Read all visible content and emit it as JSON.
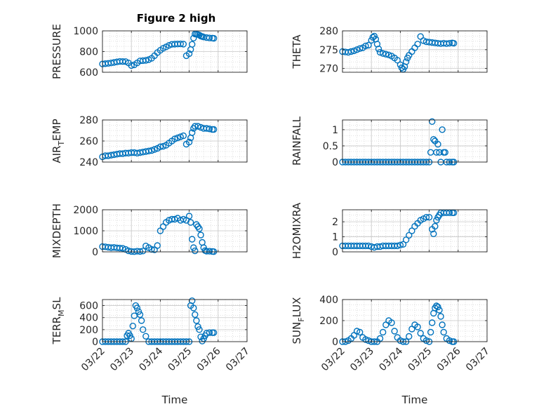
{
  "chart_data": {
    "figure_title": "Figure 2 high",
    "marker_color": "#0072BD",
    "x_axis": {
      "label": "Time",
      "ticks": [
        "03/22",
        "03/23",
        "03/24",
        "03/25",
        "03/26",
        "03/27"
      ],
      "range_days": [
        0,
        5
      ]
    },
    "panels": [
      {
        "id": "pressure",
        "type": "scatter",
        "ylabel": "PRESSURE",
        "ylabel_sub": "",
        "ylim": [
          600,
          1000
        ],
        "yticks": [
          600,
          800,
          1000
        ],
        "grid": true,
        "x": [
          0,
          0.1,
          0.2,
          0.3,
          0.4,
          0.5,
          0.6,
          0.7,
          0.8,
          0.9,
          1.0,
          1.1,
          1.2,
          1.3,
          1.4,
          1.5,
          1.6,
          1.7,
          1.8,
          1.9,
          2.0,
          2.1,
          2.2,
          2.3,
          2.4,
          2.5,
          2.6,
          2.7,
          2.8,
          2.9,
          3.0,
          3.05,
          3.1,
          3.15,
          3.2,
          3.25,
          3.3,
          3.35,
          3.4,
          3.45,
          3.5,
          3.6,
          3.7,
          3.8,
          3.85
        ],
        "y": [
          680,
          683,
          686,
          690,
          695,
          700,
          705,
          704,
          703,
          690,
          665,
          672,
          690,
          710,
          712,
          715,
          722,
          735,
          760,
          790,
          812,
          832,
          845,
          860,
          870,
          872,
          873,
          874,
          872,
          760,
          780,
          820,
          870,
          930,
          970,
          968,
          965,
          960,
          950,
          945,
          940,
          935,
          932,
          930,
          928
        ]
      },
      {
        "id": "theta",
        "type": "scatter",
        "ylabel": "THETA",
        "ylabel_sub": "",
        "ylim": [
          269,
          280
        ],
        "yticks": [
          270,
          275,
          280
        ],
        "grid": true,
        "x": [
          0,
          0.1,
          0.2,
          0.3,
          0.4,
          0.5,
          0.6,
          0.7,
          0.8,
          0.9,
          1.0,
          1.05,
          1.1,
          1.15,
          1.2,
          1.25,
          1.3,
          1.4,
          1.5,
          1.6,
          1.7,
          1.8,
          1.9,
          2.0,
          2.05,
          2.1,
          2.15,
          2.2,
          2.25,
          2.3,
          2.4,
          2.5,
          2.6,
          2.7,
          2.8,
          2.9,
          3.0,
          3.1,
          3.2,
          3.3,
          3.4,
          3.5,
          3.6,
          3.7,
          3.8,
          3.85
        ],
        "y": [
          274.5,
          274.4,
          274.3,
          274.5,
          274.7,
          275.0,
          275.3,
          275.5,
          276.0,
          276.2,
          277.5,
          278.3,
          278.6,
          277.8,
          276.5,
          275.2,
          274.3,
          274.0,
          273.8,
          273.6,
          273.3,
          272.8,
          272.2,
          271.0,
          270.2,
          269.8,
          270.5,
          271.8,
          272.8,
          273.5,
          274.5,
          275.5,
          276.5,
          278.5,
          277.4,
          277.1,
          277.0,
          276.9,
          276.8,
          276.7,
          276.6,
          276.7,
          276.6,
          276.7,
          276.8,
          276.7
        ]
      },
      {
        "id": "air_temp",
        "type": "scatter",
        "ylabel": "AIR",
        "ylabel_sub": "T",
        "ylabel_after": "EMP",
        "ylim": [
          240,
          280
        ],
        "yticks": [
          240,
          260,
          280
        ],
        "grid": true,
        "x": [
          0,
          0.1,
          0.2,
          0.3,
          0.4,
          0.5,
          0.6,
          0.7,
          0.8,
          0.9,
          1.0,
          1.1,
          1.2,
          1.3,
          1.4,
          1.5,
          1.6,
          1.7,
          1.8,
          1.9,
          2.0,
          2.1,
          2.2,
          2.3,
          2.4,
          2.5,
          2.6,
          2.7,
          2.8,
          2.9,
          3.0,
          3.05,
          3.1,
          3.15,
          3.2,
          3.3,
          3.4,
          3.5,
          3.6,
          3.7,
          3.8,
          3.85
        ],
        "y": [
          245,
          246,
          246,
          246.5,
          247,
          247.5,
          248,
          248,
          248.5,
          248.5,
          249,
          249,
          248.5,
          249,
          249.5,
          250,
          250.5,
          251,
          252,
          253,
          254.5,
          255,
          256,
          258,
          260,
          262,
          263,
          264,
          265,
          257,
          259,
          263,
          268,
          272,
          274,
          274,
          273,
          272,
          272,
          271.5,
          271,
          271
        ],
        "y_note": "values read approximately"
      },
      {
        "id": "rainfall",
        "type": "scatter",
        "ylabel": "RAINFALL",
        "ylabel_sub": "",
        "ylim": [
          0,
          1.3
        ],
        "yticks": [
          0,
          0.5,
          1
        ],
        "grid": true,
        "x": [
          0,
          0.1,
          0.2,
          0.3,
          0.4,
          0.5,
          0.6,
          0.7,
          0.8,
          0.9,
          1.0,
          1.1,
          1.2,
          1.3,
          1.4,
          1.5,
          1.6,
          1.7,
          1.8,
          1.9,
          2.0,
          2.1,
          2.2,
          2.3,
          2.4,
          2.5,
          2.6,
          2.7,
          2.8,
          2.9,
          3.0,
          3.05,
          3.1,
          3.15,
          3.2,
          3.25,
          3.3,
          3.35,
          3.4,
          3.45,
          3.5,
          3.55,
          3.6,
          3.7,
          3.8,
          3.85
        ],
        "y": [
          0,
          0,
          0,
          0,
          0,
          0,
          0,
          0,
          0,
          0,
          0,
          0,
          0,
          0,
          0,
          0,
          0,
          0,
          0,
          0,
          0,
          0,
          0,
          0,
          0,
          0,
          0,
          0,
          0,
          0,
          0,
          0.3,
          1.25,
          0.7,
          0.65,
          0.3,
          0.55,
          0.3,
          0,
          1.0,
          0.3,
          0.3,
          0,
          0,
          0,
          0
        ]
      },
      {
        "id": "mixdepth",
        "type": "scatter",
        "ylabel": "MIXDEPTH",
        "ylabel_sub": "",
        "ylim": [
          0,
          2000
        ],
        "yticks": [
          0,
          1000,
          2000
        ],
        "grid": true,
        "x": [
          0,
          0.1,
          0.2,
          0.3,
          0.4,
          0.5,
          0.6,
          0.7,
          0.8,
          0.9,
          1.0,
          1.1,
          1.2,
          1.3,
          1.4,
          1.5,
          1.6,
          1.7,
          1.8,
          1.9,
          2.0,
          2.1,
          2.2,
          2.3,
          2.4,
          2.5,
          2.6,
          2.7,
          2.8,
          2.9,
          3.0,
          3.05,
          3.1,
          3.15,
          3.2,
          3.25,
          3.3,
          3.35,
          3.4,
          3.45,
          3.5,
          3.55,
          3.6,
          3.7,
          3.8,
          3.85
        ],
        "y": [
          250,
          240,
          220,
          200,
          210,
          190,
          180,
          170,
          120,
          50,
          20,
          10,
          30,
          20,
          40,
          280,
          200,
          120,
          100,
          300,
          1000,
          1200,
          1400,
          1500,
          1550,
          1550,
          1600,
          1500,
          1550,
          1500,
          1700,
          1400,
          600,
          200,
          50,
          1300,
          1200,
          1100,
          800,
          450,
          200,
          60,
          30,
          30,
          20,
          10
        ]
      },
      {
        "id": "h2omixra",
        "type": "scatter",
        "ylabel": "H2OMIXRA",
        "ylabel_sub": "",
        "ylim": [
          0,
          2.8
        ],
        "yticks": [
          0,
          1,
          2
        ],
        "grid": true,
        "x": [
          0,
          0.1,
          0.2,
          0.3,
          0.4,
          0.5,
          0.6,
          0.7,
          0.8,
          0.9,
          1.0,
          1.1,
          1.2,
          1.3,
          1.4,
          1.5,
          1.6,
          1.7,
          1.8,
          1.9,
          2.0,
          2.1,
          2.2,
          2.3,
          2.4,
          2.5,
          2.6,
          2.7,
          2.8,
          2.9,
          3.0,
          3.1,
          3.15,
          3.2,
          3.25,
          3.3,
          3.35,
          3.4,
          3.5,
          3.6,
          3.7,
          3.8,
          3.85
        ],
        "y": [
          0.4,
          0.4,
          0.4,
          0.4,
          0.4,
          0.4,
          0.4,
          0.4,
          0.4,
          0.4,
          0.35,
          0.3,
          0.35,
          0.35,
          0.4,
          0.4,
          0.4,
          0.4,
          0.4,
          0.4,
          0.45,
          0.5,
          0.8,
          1.1,
          1.4,
          1.7,
          1.9,
          2.1,
          2.2,
          2.3,
          2.3,
          1.5,
          1.2,
          1.7,
          2.1,
          2.3,
          2.45,
          2.6,
          2.6,
          2.6,
          2.6,
          2.6,
          2.6
        ]
      },
      {
        "id": "terr_msl",
        "type": "scatter",
        "ylabel": "TERR",
        "ylabel_sub": "M",
        "ylabel_after": "SL",
        "ylim": [
          0,
          700
        ],
        "yticks": [
          0,
          200,
          400,
          600
        ],
        "grid": true,
        "x": [
          0,
          0.1,
          0.2,
          0.3,
          0.4,
          0.5,
          0.6,
          0.7,
          0.8,
          0.85,
          0.9,
          0.95,
          1.0,
          1.05,
          1.1,
          1.15,
          1.2,
          1.25,
          1.3,
          1.35,
          1.4,
          1.5,
          1.6,
          1.7,
          1.8,
          1.9,
          2.0,
          2.1,
          2.2,
          2.3,
          2.4,
          2.5,
          2.6,
          2.7,
          2.8,
          2.9,
          3.0,
          3.05,
          3.1,
          3.15,
          3.2,
          3.25,
          3.3,
          3.35,
          3.4,
          3.45,
          3.5,
          3.55,
          3.6,
          3.7,
          3.8,
          3.85
        ],
        "y": [
          0,
          0,
          0,
          0,
          0,
          0,
          0,
          0,
          0,
          100,
          140,
          100,
          50,
          260,
          430,
          600,
          560,
          500,
          450,
          350,
          200,
          90,
          0,
          0,
          0,
          0,
          0,
          0,
          0,
          0,
          0,
          0,
          0,
          0,
          0,
          0,
          0,
          600,
          680,
          560,
          450,
          350,
          250,
          200,
          80,
          10,
          50,
          100,
          140,
          150,
          150,
          150
        ]
      },
      {
        "id": "sun_flux",
        "type": "scatter",
        "ylabel": "SUN",
        "ylabel_sub": "F",
        "ylabel_after": "LUX",
        "ylim": [
          0,
          400
        ],
        "yticks": [
          0,
          200,
          400
        ],
        "grid": true,
        "x": [
          0,
          0.1,
          0.2,
          0.3,
          0.4,
          0.5,
          0.6,
          0.7,
          0.8,
          0.9,
          1.0,
          1.1,
          1.2,
          1.3,
          1.4,
          1.5,
          1.6,
          1.7,
          1.8,
          1.9,
          2.0,
          2.1,
          2.2,
          2.3,
          2.4,
          2.5,
          2.6,
          2.7,
          2.8,
          2.9,
          3.0,
          3.05,
          3.1,
          3.15,
          3.2,
          3.25,
          3.3,
          3.35,
          3.4,
          3.45,
          3.5,
          3.6,
          3.7,
          3.8,
          3.85
        ],
        "y": [
          0,
          0,
          10,
          30,
          60,
          100,
          90,
          40,
          20,
          10,
          0,
          0,
          0,
          30,
          90,
          160,
          200,
          180,
          100,
          40,
          10,
          0,
          0,
          50,
          120,
          160,
          140,
          80,
          30,
          10,
          0,
          90,
          180,
          270,
          320,
          340,
          330,
          300,
          240,
          160,
          90,
          30,
          10,
          0,
          0
        ]
      }
    ]
  }
}
